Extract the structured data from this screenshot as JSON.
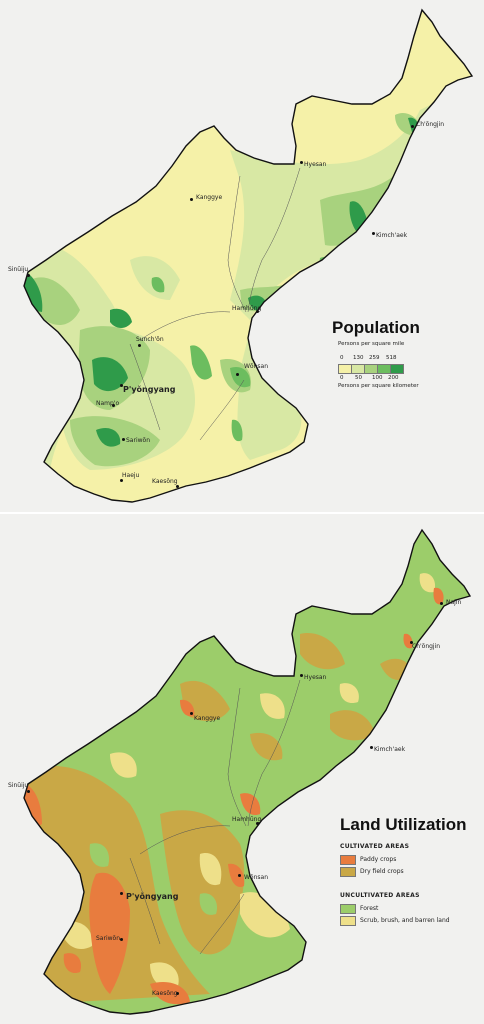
{
  "population_map": {
    "title": "Population",
    "legend": {
      "caption_mile": "Persons per square mile",
      "caption_km": "Persons per square kilometer",
      "mile_ticks": [
        "0",
        "130",
        "259",
        "518"
      ],
      "km_ticks": [
        "0",
        "50",
        "100",
        "200"
      ],
      "colors": [
        "#f5f1a8",
        "#d8e8a4",
        "#a8d27e",
        "#6cbd5f",
        "#2f9b4a"
      ]
    },
    "cities": {
      "chongjin": "Ch'ŏngjin",
      "hyesan": "Hyesan",
      "kanggye": "Kanggye",
      "kimchaek": "Kimch'aek",
      "sinuiju": "Sinŭiju",
      "hamhung": "Hamhŭng",
      "sunchon": "Sunch'ŏn",
      "wonsan": "Wŏnsan",
      "pyongyang": "P'yŏngyang",
      "nampo": "Namp'o",
      "sariwon": "Sariwŏn",
      "haeju": "Haeju",
      "kaesong": "Kaesŏng"
    }
  },
  "land_map": {
    "title": "Land Utilization",
    "cultivated_header": "CULTIVATED AREAS",
    "uncultivated_header": "UNCULTIVATED AREAS",
    "categories": [
      {
        "label": "Paddy crops",
        "color": "#e87c3e"
      },
      {
        "label": "Dry field crops",
        "color": "#c9a846"
      },
      {
        "label": "Forest",
        "color": "#9ccd6a"
      },
      {
        "label": "Scrub, brush, and barren land",
        "color": "#eee08a"
      }
    ],
    "cities": {
      "najin": "Najin",
      "chongjin": "Ch'ŏngjin",
      "hyesan": "Hyesan",
      "kanggye": "Kanggye",
      "kimchaek": "Kimch'aek",
      "sinuiju": "Sinŭiju",
      "hamhung": "Hamhŭng",
      "wonsan": "Wŏnsan",
      "pyongyang": "P'yŏngyang",
      "sariwon": "Sariwŏn",
      "kaesong": "Kaesŏng"
    }
  }
}
